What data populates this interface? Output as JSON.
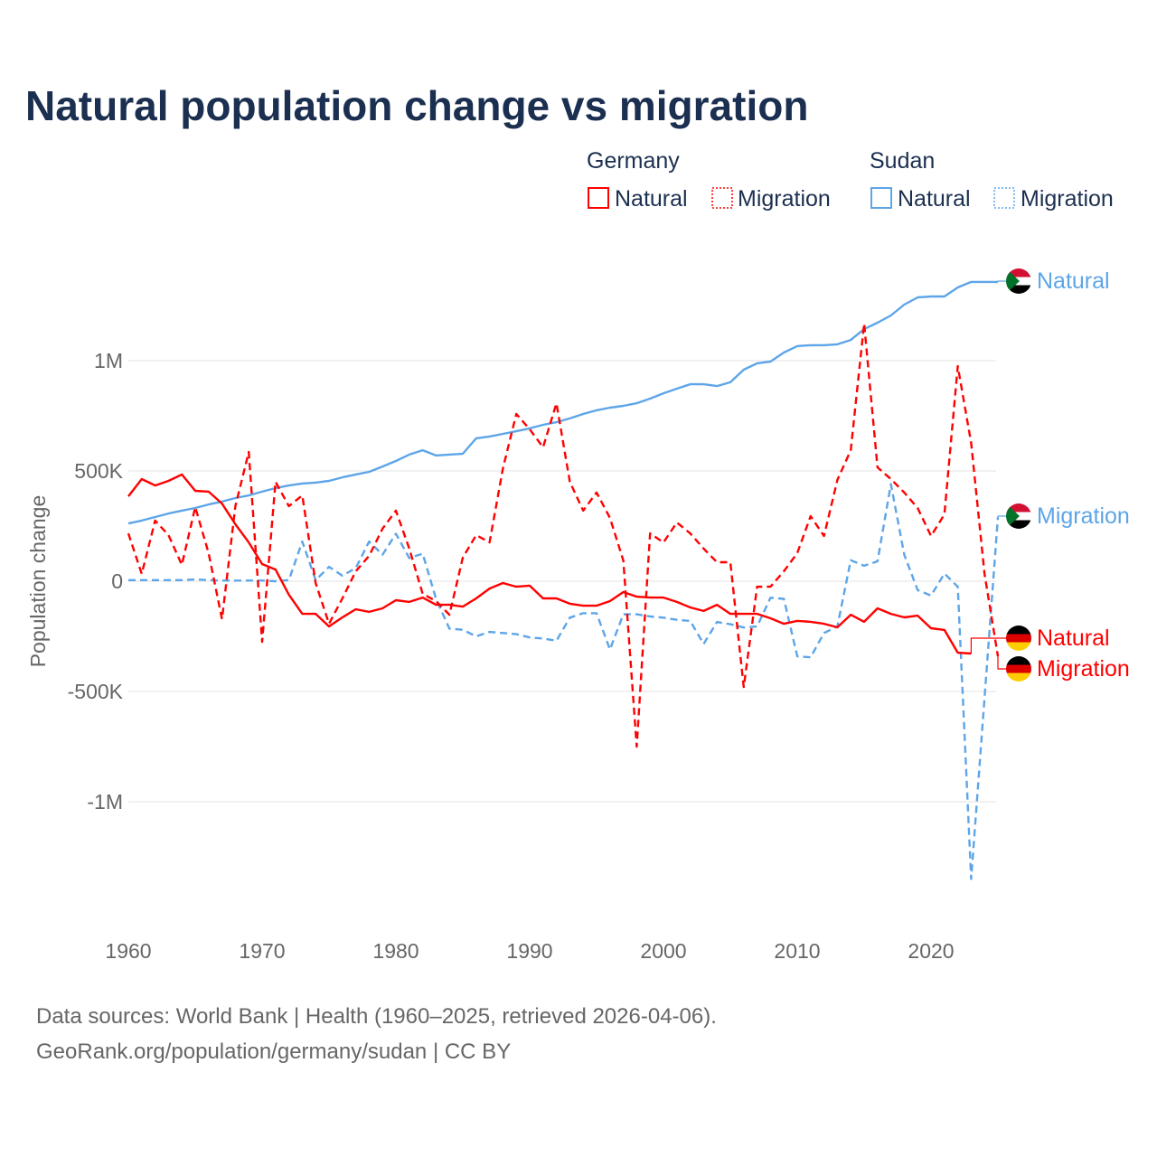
{
  "chart_data": {
    "type": "line",
    "title": "Natural population change vs migration",
    "ylabel": "Population change",
    "xlabel": "",
    "unit": "thousands",
    "xlim": [
      1960,
      2025
    ],
    "ylim": [
      -1450,
      1450
    ],
    "grid": true,
    "legend_placement": "top-right",
    "y_ticks": [
      {
        "value": 1000,
        "label": "1M"
      },
      {
        "value": 500,
        "label": "500K"
      },
      {
        "value": 0,
        "label": "0"
      },
      {
        "value": -500,
        "label": "-500K"
      },
      {
        "value": -1000,
        "label": "-1M"
      }
    ],
    "x_ticks": [
      {
        "value": 1960,
        "label": "1960"
      },
      {
        "value": 1970,
        "label": "1970"
      },
      {
        "value": 1980,
        "label": "1980"
      },
      {
        "value": 1990,
        "label": "1990"
      },
      {
        "value": 2000,
        "label": "2000"
      },
      {
        "value": 2010,
        "label": "2010"
      },
      {
        "value": 2020,
        "label": "2020"
      }
    ],
    "legend": {
      "groups": [
        {
          "country": "Germany",
          "items": [
            "Natural",
            "Migration"
          ]
        },
        {
          "country": "Sudan",
          "items": [
            "Natural",
            "Migration"
          ]
        }
      ]
    },
    "x_start": 1960,
    "series": [
      {
        "name": "Sudan Natural",
        "country": "Sudan",
        "label": "Natural",
        "color": "#5da5e8",
        "dashed": false,
        "flag": "sudan",
        "label_value": 1357,
        "values": [
          262,
          275,
          291,
          307,
          320,
          332,
          348,
          361,
          377,
          389,
          406,
          422,
          434,
          443,
          447,
          455,
          471,
          484,
          496,
          520,
          545,
          574,
          594,
          570,
          574,
          578,
          648,
          656,
          668,
          680,
          693,
          709,
          721,
          738,
          758,
          775,
          787,
          795,
          807,
          828,
          852,
          873,
          893,
          893,
          885,
          902,
          959,
          988,
          996,
          1037,
          1066,
          1070,
          1070,
          1074,
          1094,
          1143,
          1172,
          1205,
          1254,
          1287,
          1291,
          1291,
          1332,
          1357,
          1357,
          1357
        ]
      },
      {
        "name": "Sudan Migration",
        "country": "Sudan",
        "label": "Migration",
        "color": "#5da5e8",
        "dashed": true,
        "flag": "sudan",
        "label_value": 300,
        "values": [
          5,
          5,
          5,
          5,
          5,
          8,
          5,
          3,
          3,
          3,
          3,
          0,
          5,
          180,
          5,
          65,
          25,
          60,
          180,
          120,
          215,
          105,
          125,
          -80,
          -215,
          -220,
          -250,
          -230,
          -235,
          -240,
          -255,
          -260,
          -270,
          -165,
          -145,
          -145,
          -310,
          -150,
          -150,
          -160,
          -165,
          -175,
          -180,
          -285,
          -185,
          -195,
          -210,
          -205,
          -75,
          -80,
          -340,
          -345,
          -235,
          -205,
          95,
          70,
          90,
          440,
          120,
          -40,
          -65,
          35,
          -25,
          -1350,
          -530,
          290
        ]
      },
      {
        "name": "Germany Natural",
        "country": "Germany",
        "label": "Natural",
        "color": "#ff0000",
        "dashed": false,
        "flag": "germany",
        "label_value": -260,
        "values": [
          385,
          463,
          434,
          455,
          484,
          410,
          406,
          352,
          258,
          176,
          78,
          53,
          -61,
          -148,
          -148,
          -205,
          -164,
          -127,
          -139,
          -123,
          -86,
          -94,
          -74,
          -107,
          -107,
          -115,
          -78,
          -33,
          -8,
          -25,
          -20,
          -78,
          -78,
          -102,
          -111,
          -111,
          -90,
          -49,
          -70,
          -74,
          -74,
          -94,
          -119,
          -135,
          -107,
          -148,
          -148,
          -148,
          -168,
          -193,
          -180,
          -184,
          -193,
          -209,
          -152,
          -184,
          -123,
          -148,
          -164,
          -156,
          -213,
          -221,
          -324,
          -328,
          null,
          null
        ]
      },
      {
        "name": "Germany Migration",
        "country": "Germany",
        "label": "Migration",
        "color": "#ff0000",
        "dashed": true,
        "flag": "germany",
        "label_value": -400,
        "values": [
          217,
          33,
          275,
          209,
          74,
          336,
          127,
          -172,
          340,
          586,
          -275,
          451,
          340,
          389,
          -8,
          -193,
          -78,
          45,
          115,
          238,
          320,
          148,
          -57,
          -90,
          -152,
          107,
          209,
          176,
          512,
          758,
          689,
          607,
          807,
          451,
          320,
          402,
          287,
          94,
          -750,
          217,
          176,
          266,
          217,
          148,
          86,
          86,
          -480,
          -25,
          -25,
          45,
          127,
          295,
          205,
          459,
          594,
          1168,
          516,
          463,
          402,
          332,
          205,
          303,
          975,
          627,
          33,
          -340
        ]
      }
    ]
  },
  "footer": {
    "line1": "Data sources: World Bank | Health (1960–2025, retrieved 2026-04-06).",
    "line2": "GeoRank.org/population/germany/sudan | CC BY"
  }
}
